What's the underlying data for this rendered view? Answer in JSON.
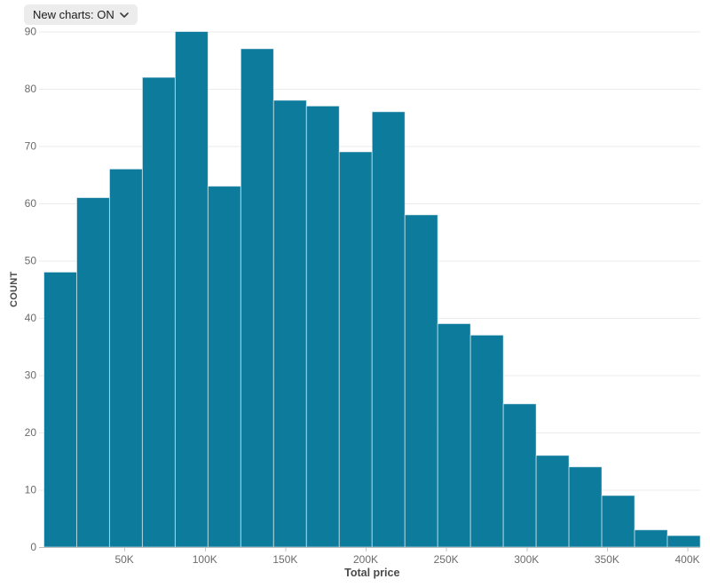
{
  "controls": {
    "new_charts_label": "New charts: ON"
  },
  "chart_data": {
    "type": "bar",
    "subtype": "histogram",
    "title": "",
    "xlabel": "Total price",
    "ylabel": "COUNT",
    "values": [
      48,
      61,
      66,
      82,
      90,
      63,
      87,
      78,
      77,
      69,
      76,
      58,
      39,
      37,
      25,
      16,
      14,
      9,
      3,
      2
    ],
    "bin_count": 20,
    "bin_width_k": 20.4,
    "xlim_k": [
      0,
      408
    ],
    "ylim": [
      0,
      90
    ],
    "x_ticks": [
      {
        "value_k": 50,
        "label": "50K"
      },
      {
        "value_k": 100,
        "label": "100K"
      },
      {
        "value_k": 150,
        "label": "150K"
      },
      {
        "value_k": 200,
        "label": "200K"
      },
      {
        "value_k": 250,
        "label": "250K"
      },
      {
        "value_k": 300,
        "label": "300K"
      },
      {
        "value_k": 350,
        "label": "350K"
      },
      {
        "value_k": 400,
        "label": "400K"
      }
    ],
    "y_ticks": [
      0,
      10,
      20,
      30,
      40,
      50,
      60,
      70,
      80,
      90
    ],
    "grid": "horizontal",
    "legend": "none",
    "bar_color": "#0d7b9c",
    "bar_stroke": "rgba(255,255,255,0.55)",
    "gridline_color": "#ebebeb",
    "axisline_color": "#bdbdbd",
    "tick_color": "#c6c6c6",
    "tick_label_color": "#6b6b6b",
    "axis_title_color": "#4a4a4a"
  }
}
